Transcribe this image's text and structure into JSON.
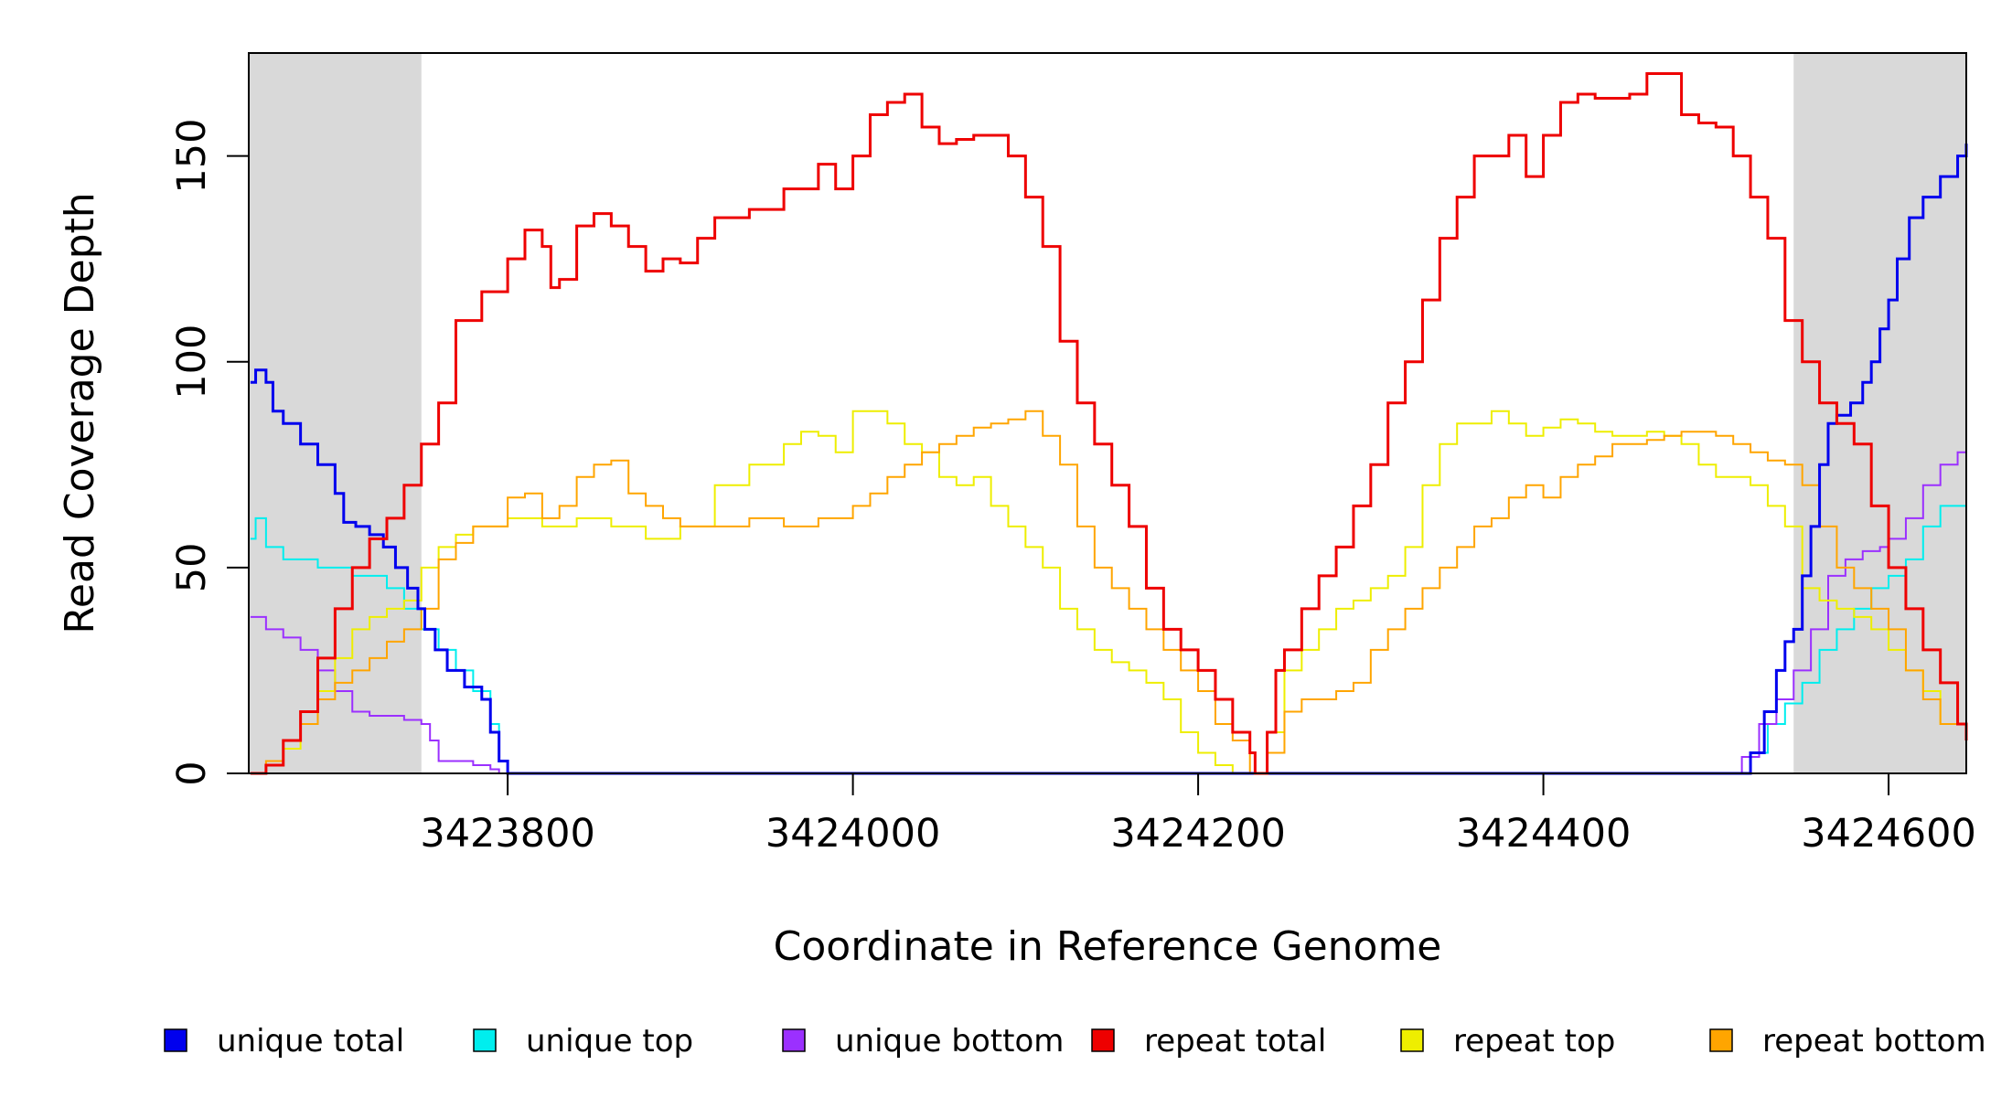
{
  "chart_data": {
    "type": "line",
    "title": "",
    "xlabel": "Coordinate in Reference Genome",
    "ylabel": "Read Coverage Depth",
    "xlim": [
      3423650,
      3424645
    ],
    "ylim": [
      0,
      175
    ],
    "xticks": [
      3423800,
      3424000,
      3424200,
      3424400,
      3424600
    ],
    "yticks": [
      0,
      50,
      100,
      150
    ],
    "shaded_regions": [
      [
        3423650,
        3423750
      ],
      [
        3424545,
        3424645
      ]
    ],
    "grid": false,
    "legend_position": "bottom",
    "series": [
      {
        "name": "unique total",
        "color": "#0000ee",
        "stroke": 3,
        "x": [
          3423651,
          3423654,
          3423660,
          3423664,
          3423670,
          3423680,
          3423690,
          3423700,
          3423705,
          3423712,
          3423720,
          3423728,
          3423735,
          3423742,
          3423748,
          3423752,
          3423758,
          3423765,
          3423775,
          3423785,
          3423790,
          3423795,
          3423800,
          3424500,
          3424515,
          3424520,
          3424528,
          3424535,
          3424540,
          3424545,
          3424550,
          3424555,
          3424560,
          3424565,
          3424570,
          3424578,
          3424585,
          3424590,
          3424595,
          3424600,
          3424605,
          3424612,
          3424620,
          3424630,
          3424640,
          3424645
        ],
        "y": [
          95,
          98,
          95,
          88,
          85,
          80,
          75,
          68,
          61,
          60,
          58,
          55,
          50,
          45,
          40,
          35,
          30,
          25,
          21,
          18,
          10,
          3,
          0,
          0,
          0,
          5,
          15,
          25,
          32,
          35,
          48,
          60,
          75,
          85,
          87,
          90,
          95,
          100,
          108,
          115,
          125,
          135,
          140,
          145,
          150,
          153
        ]
      },
      {
        "name": "unique top",
        "color": "#00eeee",
        "stroke": 2,
        "x": [
          3423651,
          3423654,
          3423660,
          3423670,
          3423690,
          3423710,
          3423730,
          3423740,
          3423750,
          3423760,
          3423770,
          3423780,
          3423790,
          3423795,
          3423800,
          3424500,
          3424510,
          3424520,
          3424530,
          3424540,
          3424550,
          3424560,
          3424570,
          3424580,
          3424590,
          3424600,
          3424610,
          3424620,
          3424630,
          3424645
        ],
        "y": [
          57,
          62,
          55,
          52,
          50,
          48,
          45,
          40,
          35,
          30,
          25,
          20,
          12,
          3,
          0,
          0,
          0,
          5,
          12,
          17,
          22,
          30,
          35,
          40,
          45,
          48,
          52,
          60,
          65,
          70
        ]
      },
      {
        "name": "unique bottom",
        "color": "#9b30ff",
        "stroke": 2,
        "x": [
          3423651,
          3423660,
          3423670,
          3423680,
          3423690,
          3423700,
          3423710,
          3423720,
          3423740,
          3423750,
          3423755,
          3423760,
          3423780,
          3423790,
          3423795,
          3424505,
          3424515,
          3424525,
          3424535,
          3424545,
          3424555,
          3424565,
          3424575,
          3424585,
          3424595,
          3424600,
          3424610,
          3424620,
          3424630,
          3424640,
          3424645
        ],
        "y": [
          38,
          35,
          33,
          30,
          25,
          20,
          15,
          14,
          13,
          12,
          8,
          3,
          2,
          1,
          0,
          0,
          4,
          12,
          18,
          25,
          35,
          48,
          52,
          54,
          55,
          57,
          62,
          70,
          75,
          78,
          82
        ]
      },
      {
        "name": "repeat total",
        "color": "#ee0000",
        "stroke": 3,
        "x": [
          3423651,
          3423660,
          3423670,
          3423680,
          3423690,
          3423700,
          3423710,
          3423720,
          3423730,
          3423740,
          3423750,
          3423760,
          3423770,
          3423785,
          3423800,
          3423810,
          3423820,
          3423825,
          3423830,
          3423840,
          3423850,
          3423860,
          3423870,
          3423880,
          3423890,
          3423900,
          3423910,
          3423920,
          3423940,
          3423960,
          3423980,
          3423990,
          3424000,
          3424010,
          3424020,
          3424030,
          3424040,
          3424050,
          3424060,
          3424070,
          3424080,
          3424090,
          3424100,
          3424110,
          3424120,
          3424130,
          3424140,
          3424150,
          3424160,
          3424170,
          3424180,
          3424190,
          3424200,
          3424210,
          3424220,
          3424230,
          3424233,
          3424240,
          3424245,
          3424250,
          3424260,
          3424270,
          3424280,
          3424290,
          3424300,
          3424310,
          3424320,
          3424330,
          3424340,
          3424350,
          3424360,
          3424370,
          3424380,
          3424390,
          3424400,
          3424410,
          3424420,
          3424430,
          3424440,
          3424450,
          3424460,
          3424470,
          3424480,
          3424490,
          3424500,
          3424510,
          3424520,
          3424530,
          3424540,
          3424550,
          3424560,
          3424570,
          3424580,
          3424590,
          3424600,
          3424610,
          3424620,
          3424630,
          3424640,
          3424645
        ],
        "y": [
          0,
          2,
          8,
          15,
          28,
          40,
          50,
          57,
          62,
          70,
          80,
          90,
          110,
          117,
          125,
          132,
          128,
          118,
          120,
          133,
          136,
          133,
          128,
          122,
          125,
          124,
          130,
          135,
          137,
          142,
          148,
          142,
          150,
          160,
          163,
          165,
          157,
          153,
          154,
          155,
          155,
          150,
          140,
          128,
          105,
          90,
          80,
          70,
          60,
          45,
          35,
          30,
          25,
          18,
          10,
          5,
          0,
          10,
          25,
          30,
          40,
          48,
          55,
          65,
          75,
          90,
          100,
          115,
          130,
          140,
          150,
          150,
          155,
          145,
          155,
          163,
          165,
          164,
          164,
          165,
          170,
          170,
          160,
          158,
          157,
          150,
          140,
          130,
          110,
          100,
          90,
          85,
          80,
          65,
          50,
          40,
          30,
          22,
          12,
          8
        ]
      },
      {
        "name": "repeat top",
        "color": "#eeee00",
        "stroke": 2,
        "x": [
          3423651,
          3423660,
          3423670,
          3423680,
          3423690,
          3423700,
          3423710,
          3423720,
          3423730,
          3423740,
          3423750,
          3423760,
          3423770,
          3423780,
          3423800,
          3423820,
          3423840,
          3423860,
          3423880,
          3423900,
          3423920,
          3423940,
          3423960,
          3423970,
          3423980,
          3423990,
          3424000,
          3424010,
          3424020,
          3424030,
          3424040,
          3424050,
          3424060,
          3424070,
          3424080,
          3424090,
          3424100,
          3424110,
          3424120,
          3424130,
          3424140,
          3424150,
          3424160,
          3424170,
          3424180,
          3424190,
          3424200,
          3424210,
          3424220,
          3424230,
          3424235,
          3424240,
          3424250,
          3424260,
          3424270,
          3424280,
          3424290,
          3424300,
          3424310,
          3424320,
          3424330,
          3424340,
          3424350,
          3424360,
          3424370,
          3424380,
          3424390,
          3424400,
          3424410,
          3424420,
          3424430,
          3424440,
          3424450,
          3424460,
          3424470,
          3424480,
          3424490,
          3424500,
          3424510,
          3424520,
          3424530,
          3424540,
          3424550,
          3424560,
          3424570,
          3424580,
          3424590,
          3424600,
          3424610,
          3424620,
          3424630,
          3424645
        ],
        "y": [
          0,
          2,
          6,
          12,
          20,
          28,
          35,
          38,
          40,
          42,
          50,
          55,
          58,
          60,
          62,
          60,
          62,
          60,
          57,
          60,
          70,
          75,
          80,
          83,
          82,
          78,
          88,
          88,
          85,
          80,
          78,
          72,
          70,
          72,
          65,
          60,
          55,
          50,
          40,
          35,
          30,
          27,
          25,
          22,
          18,
          10,
          5,
          2,
          0,
          0,
          0,
          10,
          25,
          30,
          35,
          40,
          42,
          45,
          48,
          55,
          70,
          80,
          85,
          85,
          88,
          85,
          82,
          84,
          86,
          85,
          83,
          82,
          82,
          83,
          82,
          80,
          75,
          72,
          72,
          70,
          65,
          60,
          45,
          42,
          40,
          38,
          35,
          30,
          25,
          20,
          12,
          5
        ]
      },
      {
        "name": "repeat bottom",
        "color": "#ffa500",
        "stroke": 2,
        "x": [
          3423651,
          3423660,
          3423670,
          3423680,
          3423690,
          3423700,
          3423710,
          3423720,
          3423730,
          3423740,
          3423750,
          3423760,
          3423770,
          3423780,
          3423800,
          3423810,
          3423820,
          3423830,
          3423840,
          3423850,
          3423860,
          3423870,
          3423880,
          3423890,
          3423900,
          3423920,
          3423940,
          3423960,
          3423980,
          3424000,
          3424010,
          3424020,
          3424030,
          3424040,
          3424050,
          3424060,
          3424070,
          3424080,
          3424090,
          3424100,
          3424110,
          3424120,
          3424130,
          3424140,
          3424150,
          3424160,
          3424170,
          3424180,
          3424190,
          3424200,
          3424210,
          3424220,
          3424230,
          3424235,
          3424240,
          3424250,
          3424260,
          3424270,
          3424280,
          3424290,
          3424300,
          3424310,
          3424320,
          3424330,
          3424340,
          3424350,
          3424360,
          3424370,
          3424380,
          3424390,
          3424400,
          3424410,
          3424420,
          3424430,
          3424440,
          3424450,
          3424460,
          3424470,
          3424480,
          3424490,
          3424500,
          3424510,
          3424520,
          3424530,
          3424540,
          3424550,
          3424560,
          3424570,
          3424580,
          3424590,
          3424600,
          3424610,
          3424620,
          3424630,
          3424645
        ],
        "y": [
          0,
          3,
          8,
          12,
          18,
          22,
          25,
          28,
          32,
          35,
          40,
          52,
          56,
          60,
          67,
          68,
          62,
          65,
          72,
          75,
          76,
          68,
          65,
          62,
          60,
          60,
          62,
          60,
          62,
          65,
          68,
          72,
          75,
          78,
          80,
          82,
          84,
          85,
          86,
          88,
          82,
          75,
          60,
          50,
          45,
          40,
          35,
          30,
          25,
          20,
          12,
          8,
          0,
          0,
          5,
          15,
          18,
          18,
          20,
          22,
          30,
          35,
          40,
          45,
          50,
          55,
          60,
          62,
          67,
          70,
          67,
          72,
          75,
          77,
          80,
          80,
          81,
          82,
          83,
          83,
          82,
          80,
          78,
          76,
          75,
          70,
          60,
          50,
          45,
          40,
          35,
          25,
          18,
          12,
          7
        ]
      }
    ]
  }
}
